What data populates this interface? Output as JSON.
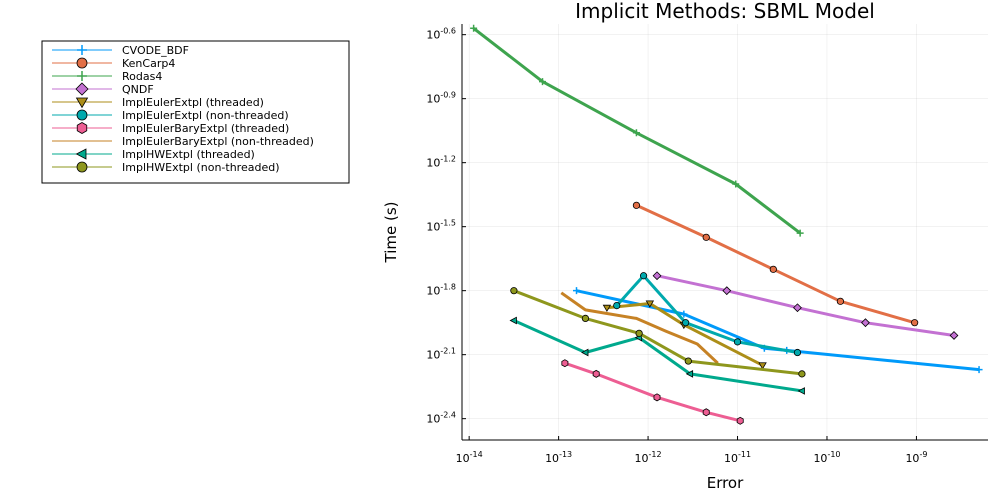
{
  "chart_data": {
    "type": "line",
    "title": "Implicit Methods: SBML Model",
    "xlabel": "Error",
    "ylabel": "Time (s)",
    "xscale": "log10",
    "yscale": "log10",
    "xlim_exp": [
      -14.08,
      -8.2
    ],
    "ylim_exp": [
      -2.5,
      -0.55
    ],
    "xticks": [
      {
        "exp": -14,
        "label": "-14"
      },
      {
        "exp": -13,
        "label": "-13"
      },
      {
        "exp": -12,
        "label": "-12"
      },
      {
        "exp": -11,
        "label": "-11"
      },
      {
        "exp": -10,
        "label": "-10"
      },
      {
        "exp": -9,
        "label": "-9"
      }
    ],
    "yticks": [
      {
        "exp": -0.6,
        "label": "-0.6"
      },
      {
        "exp": -0.9,
        "label": "-0.9"
      },
      {
        "exp": -1.2,
        "label": "-1.2"
      },
      {
        "exp": -1.5,
        "label": "-1.5"
      },
      {
        "exp": -1.8,
        "label": "-1.8"
      },
      {
        "exp": -2.1,
        "label": "-2.1"
      },
      {
        "exp": -2.4,
        "label": "-2.4"
      }
    ],
    "tick_base": "10",
    "legend_position": "outside-top-left",
    "series": [
      {
        "name": "CVODE_BDF",
        "color": "#009AFA",
        "marker": "cross",
        "x_exp": [
          -12.8,
          -11.6,
          -10.7,
          -10.45,
          -8.3
        ],
        "y_exp": [
          -1.8,
          -1.91,
          -2.07,
          -2.08,
          -2.17
        ]
      },
      {
        "name": "KenCarp4",
        "color": "#E26F46",
        "marker": "circle",
        "x_exp": [
          -12.13,
          -11.35,
          -10.6,
          -9.85,
          -9.02
        ],
        "y_exp": [
          -1.4,
          -1.55,
          -1.7,
          -1.85,
          -1.95
        ]
      },
      {
        "name": "Rodas4",
        "color": "#3EA44E",
        "marker": "cross",
        "x_exp": [
          -13.95,
          -13.18,
          -12.13,
          -11.02,
          -10.3
        ],
        "y_exp": [
          -0.57,
          -0.82,
          -1.06,
          -1.3,
          -1.53
        ]
      },
      {
        "name": "QNDF",
        "color": "#C371D2",
        "marker": "diamond",
        "x_exp": [
          -11.9,
          -11.12,
          -10.33,
          -9.57,
          -8.58
        ],
        "y_exp": [
          -1.73,
          -1.8,
          -1.88,
          -1.95,
          -2.01
        ]
      },
      {
        "name": "ImplEulerExtpl (threaded)",
        "color": "#AC8E18",
        "marker": "triangle-down",
        "x_exp": [
          -12.46,
          -11.98,
          -11.6,
          -10.72
        ],
        "y_exp": [
          -1.88,
          -1.86,
          -1.96,
          -2.15
        ]
      },
      {
        "name": "ImplEulerExtpl (non-threaded)",
        "color": "#00A9AD",
        "marker": "circle",
        "x_exp": [
          -12.35,
          -12.05,
          -11.58,
          -11.0,
          -10.33
        ],
        "y_exp": [
          -1.87,
          -1.73,
          -1.95,
          -2.04,
          -2.09
        ]
      },
      {
        "name": "ImplEulerBaryExtpl (threaded)",
        "color": "#ED5E93",
        "marker": "hexagon",
        "x_exp": [
          -12.93,
          -12.58,
          -11.9,
          -11.35,
          -10.97
        ],
        "y_exp": [
          -2.14,
          -2.19,
          -2.3,
          -2.37,
          -2.41
        ]
      },
      {
        "name": "ImplEulerBaryExtpl (non-threaded)",
        "color": "#C68225",
        "marker": "none",
        "x_exp": [
          -12.97,
          -12.7,
          -12.13,
          -11.8,
          -11.45,
          -11.22
        ],
        "y_exp": [
          -1.81,
          -1.89,
          -1.93,
          -1.99,
          -2.05,
          -2.14
        ]
      },
      {
        "name": "ImplHWExtpl (threaded)",
        "color": "#00A98D",
        "marker": "triangle-left",
        "x_exp": [
          -13.5,
          -12.7,
          -12.1,
          -11.53,
          -10.28
        ],
        "y_exp": [
          -1.94,
          -2.09,
          -2.02,
          -2.19,
          -2.27
        ]
      },
      {
        "name": "ImplHWExtpl (non-threaded)",
        "color": "#8E971D",
        "marker": "circle",
        "x_exp": [
          -13.5,
          -12.7,
          -12.1,
          -11.55,
          -10.28
        ],
        "y_exp": [
          -1.8,
          -1.93,
          -2.0,
          -2.13,
          -2.19
        ]
      }
    ]
  }
}
